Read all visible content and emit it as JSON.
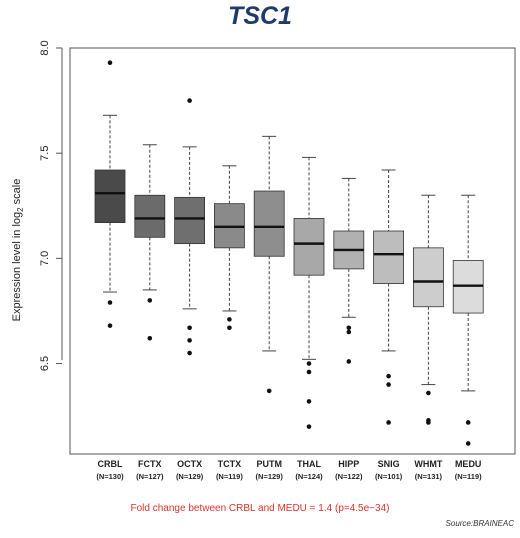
{
  "chart_data": {
    "type": "boxplot",
    "title": "TSC1",
    "ylabel_prefix": "Expression level in log",
    "ylabel_sub": "2",
    "ylabel_suffix": " scale",
    "ylim": [
      6.07,
      8.0
    ],
    "yticks": [
      "8.0",
      "7.5",
      "7.0",
      "6.5"
    ],
    "ytick_values": [
      8.0,
      7.5,
      7.0,
      6.5
    ],
    "grid": false,
    "footnote": "Fold change between CRBL and MEDU = 1.4 (p=4.5e−34)",
    "source": "Source:BRAINEAC",
    "series": [
      {
        "category": "CRBL",
        "n_label": "(N=130)",
        "whisker_low": 6.84,
        "q1": 7.17,
        "median": 7.31,
        "q3": 7.42,
        "whisker_high": 7.68,
        "outliers": [
          7.93,
          6.79,
          6.68
        ],
        "fill": "#4a4a4a"
      },
      {
        "category": "FCTX",
        "n_label": "(N=127)",
        "whisker_low": 6.85,
        "q1": 7.1,
        "median": 7.19,
        "q3": 7.3,
        "whisker_high": 7.54,
        "outliers": [
          6.8,
          6.62
        ],
        "fill": "#6b6b6b"
      },
      {
        "category": "OCTX",
        "n_label": "(N=129)",
        "whisker_low": 6.76,
        "q1": 7.07,
        "median": 7.19,
        "q3": 7.29,
        "whisker_high": 7.53,
        "outliers": [
          7.75,
          6.67,
          6.61,
          6.55
        ],
        "fill": "#6f6f6f"
      },
      {
        "category": "TCTX",
        "n_label": "(N=119)",
        "whisker_low": 6.75,
        "q1": 7.05,
        "median": 7.15,
        "q3": 7.26,
        "whisker_high": 7.44,
        "outliers": [
          6.71,
          6.67
        ],
        "fill": "#8a8a8a"
      },
      {
        "category": "PUTM",
        "n_label": "(N=129)",
        "whisker_low": 6.56,
        "q1": 7.01,
        "median": 7.15,
        "q3": 7.32,
        "whisker_high": 7.58,
        "outliers": [
          6.37
        ],
        "fill": "#8e8e8e"
      },
      {
        "category": "THAL",
        "n_label": "(N=124)",
        "whisker_low": 6.52,
        "q1": 6.92,
        "median": 7.07,
        "q3": 7.19,
        "whisker_high": 7.48,
        "outliers": [
          6.5,
          6.46,
          6.32,
          6.2
        ],
        "fill": "#a8a8a8"
      },
      {
        "category": "HIPP",
        "n_label": "(N=122)",
        "whisker_low": 6.72,
        "q1": 6.95,
        "median": 7.04,
        "q3": 7.13,
        "whisker_high": 7.38,
        "outliers": [
          6.67,
          6.65,
          6.51
        ],
        "fill": "#b1b1b1"
      },
      {
        "category": "SNIG",
        "n_label": "(N=101)",
        "whisker_low": 6.56,
        "q1": 6.88,
        "median": 7.02,
        "q3": 7.13,
        "whisker_high": 7.42,
        "outliers": [
          6.44,
          6.4,
          6.22
        ],
        "fill": "#bdbdbd"
      },
      {
        "category": "WHMT",
        "n_label": "(N=131)",
        "whisker_low": 6.4,
        "q1": 6.77,
        "median": 6.89,
        "q3": 7.05,
        "whisker_high": 7.3,
        "outliers": [
          6.36,
          6.23,
          6.22
        ],
        "fill": "#cdcdcd"
      },
      {
        "category": "MEDU",
        "n_label": "(N=119)",
        "whisker_low": 6.37,
        "q1": 6.74,
        "median": 6.87,
        "q3": 6.99,
        "whisker_high": 7.3,
        "outliers": [
          6.22,
          6.12
        ],
        "fill": "#dcdcdc"
      }
    ]
  }
}
